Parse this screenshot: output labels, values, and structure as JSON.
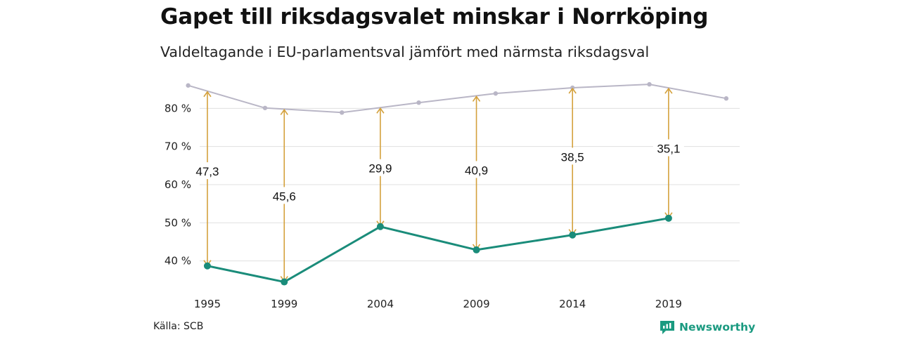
{
  "title": "Gapet till riksdagsvalet minskar i Norrköping",
  "subtitle": "Valdeltagande i EU-parlamentsval jämfört med närmsta riksdagsval",
  "source": "Källa: SCB",
  "brand": "Newsworthy",
  "colors": {
    "eu": "#1a8c7a",
    "riksdag": "#b9b6c6",
    "arrow": "#d4a13c",
    "grid": "#e0e0e0"
  },
  "chart_data": {
    "type": "line",
    "ylim": [
      30,
      90
    ],
    "yticks": [
      40,
      50,
      60,
      70,
      80
    ],
    "ytick_labels": [
      "40 %",
      "50 %",
      "60 %",
      "70 %",
      "80 %"
    ],
    "xlim": [
      1994.6,
      2022.7
    ],
    "xticks": [
      1995,
      1999,
      2004,
      2009,
      2014,
      2019
    ],
    "series": [
      {
        "key": "riksdag",
        "x": [
          1994,
          1998,
          2002,
          2006,
          2010,
          2014,
          2018,
          2022
        ],
        "values": [
          86.0,
          80.1,
          78.9,
          81.5,
          83.9,
          85.4,
          86.3,
          82.6
        ]
      },
      {
        "key": "eu",
        "x": [
          1995,
          1999,
          2004,
          2009,
          2014,
          2019
        ],
        "values": [
          38.7,
          34.5,
          49.0,
          42.9,
          46.8,
          51.2
        ]
      }
    ],
    "gaps": [
      {
        "x": 1995,
        "label": "47,3",
        "label_y": 63.3
      },
      {
        "x": 1999,
        "label": "45,6",
        "label_y": 56.8
      },
      {
        "x": 2004,
        "label": "29,9",
        "label_y": 64.1
      },
      {
        "x": 2009,
        "label": "40,9",
        "label_y": 63.6
      },
      {
        "x": 2014,
        "label": "38,5",
        "label_y": 67.1
      },
      {
        "x": 2019,
        "label": "35,1",
        "label_y": 69.3
      }
    ]
  }
}
